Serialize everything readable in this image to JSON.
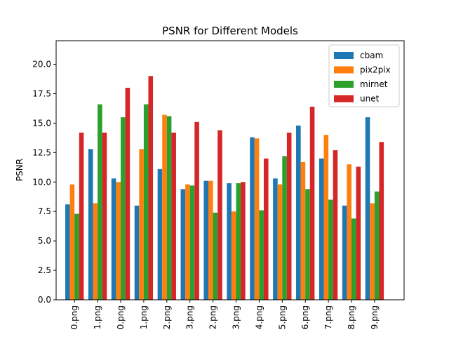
{
  "chart_data": {
    "type": "bar",
    "title": "PSNR for Different Models",
    "xlabel": "",
    "ylabel": "PSNR",
    "ylim": [
      0,
      22
    ],
    "yticks": [
      "0.0",
      "2.5",
      "5.0",
      "7.5",
      "10.0",
      "12.5",
      "15.0",
      "17.5",
      "20.0"
    ],
    "ytick_values": [
      0,
      2.5,
      5,
      7.5,
      10,
      12.5,
      15,
      17.5,
      20
    ],
    "categories": [
      "0.png",
      "1.png",
      "0.png",
      "1.png",
      "2.png",
      "3.png",
      "2.png",
      "3.png",
      "4.png",
      "5.png",
      "6.png",
      "7.png",
      "8.png",
      "9.png"
    ],
    "legend_position": "top-right",
    "grid": false,
    "series": [
      {
        "name": "cbam",
        "color": "#1f77b4",
        "values": [
          8.1,
          12.8,
          10.3,
          8.0,
          11.1,
          9.4,
          10.1,
          9.9,
          13.8,
          10.3,
          14.8,
          12.0,
          8.0,
          15.5
        ]
      },
      {
        "name": "pix2pix",
        "color": "#ff7f0e",
        "values": [
          9.8,
          8.2,
          10.0,
          12.8,
          15.7,
          9.8,
          10.1,
          7.5,
          13.7,
          9.8,
          11.7,
          14.0,
          11.5,
          8.2
        ]
      },
      {
        "name": "mirnet",
        "color": "#2ca02c",
        "values": [
          7.3,
          16.6,
          15.5,
          16.6,
          15.6,
          9.7,
          7.4,
          9.9,
          7.6,
          12.2,
          9.4,
          8.5,
          6.9,
          9.2
        ]
      },
      {
        "name": "unet",
        "color": "#d62728",
        "values": [
          14.2,
          14.2,
          18.0,
          19.0,
          14.2,
          15.1,
          14.4,
          10.0,
          12.0,
          14.2,
          16.4,
          12.7,
          11.3,
          13.4
        ]
      }
    ]
  }
}
